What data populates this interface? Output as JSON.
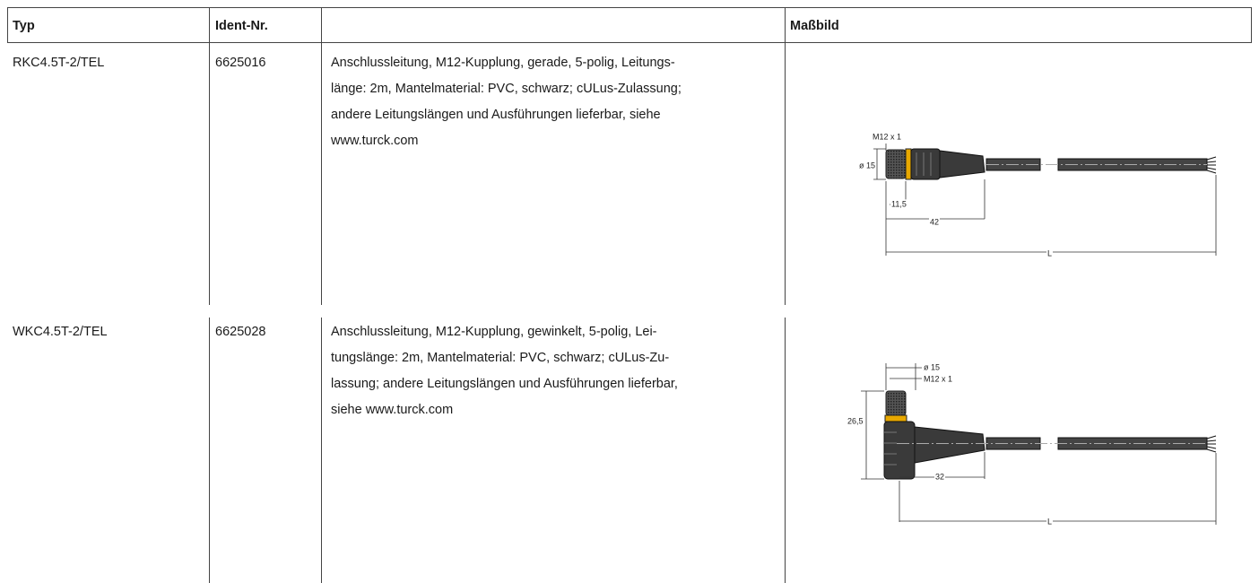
{
  "table": {
    "header": [
      "Typ",
      "Ident-Nr.",
      "Maßbild"
    ],
    "rows": [
      {
        "typ": "RKC4.5T-2/TEL",
        "ident": "6625016",
        "description": [
          "Anschlussleitung, M12-Kupplung, gerade, 5-polig, Leitungs-",
          "länge: 2m, Mantelmaterial: PVC, schwarz; cULus-Zulassung;",
          "andere Leitungslängen und Ausführungen lieferbar, siehe",
          "www.turck.com"
        ],
        "drawing": {
          "labels": [
            "M12 x 1",
            "ø 15",
            "11,5",
            "42",
            "L"
          ]
        }
      },
      {
        "typ": "WKC4.5T-2/TEL",
        "ident": "6625028",
        "description": [
          "Anschlussleitung, M12-Kupplung, gewinkelt, 5-polig, Lei-",
          "tungslänge: 2m, Mantelmaterial: PVC, schwarz; cULus-Zu-",
          "lassung; andere Leitungslängen und Ausführungen lieferbar,",
          "siehe www.turck.com"
        ],
        "drawing": {
          "labels": [
            "ø 15",
            "M12 x 1",
            "26,5",
            "32",
            "L"
          ]
        }
      }
    ]
  }
}
